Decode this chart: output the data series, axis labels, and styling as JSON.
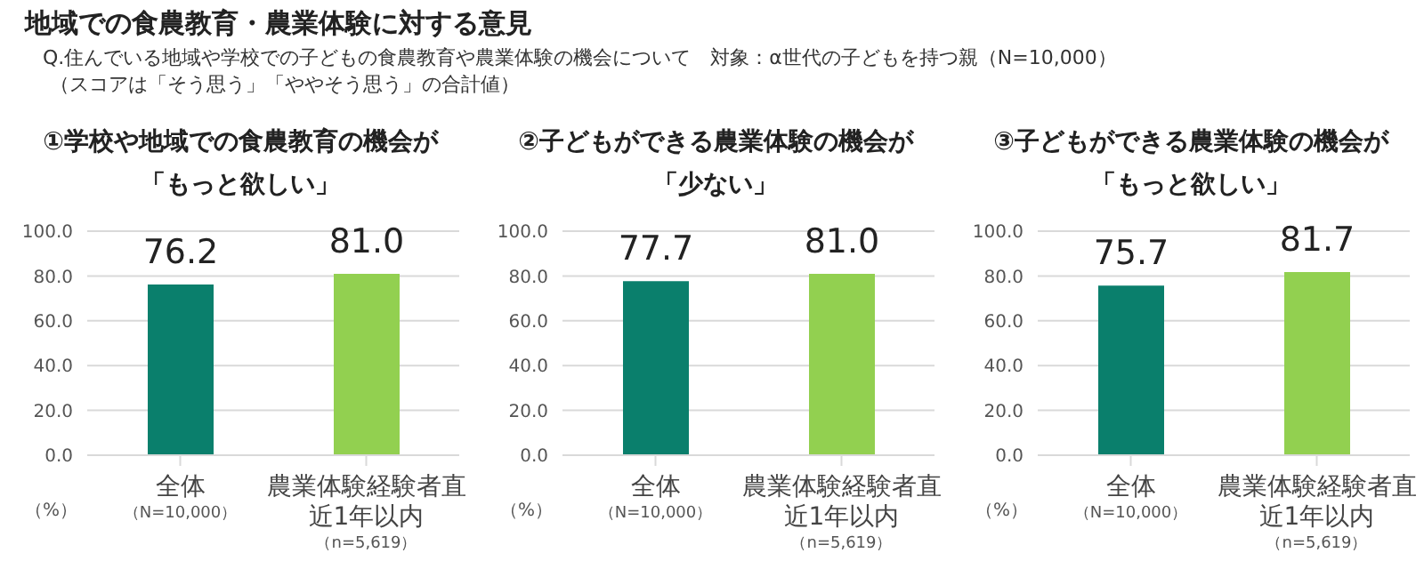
{
  "chart_data": [
    {
      "type": "bar",
      "title": "①学校や地域での食農教育の機会が「もっと欲しい」",
      "annotations": [
        "地域での食農教育・農業体験に対する意見",
        "Q.住んでいる地域や学校での子どもの食農教育や農業体験の機会について　対象：α世代の子どもを持つ親（N=10,000）",
        "（スコアは「そう思う」「ややそう思う」の合計値）"
      ],
      "ylabel": "（%）",
      "categories": [
        "全体（N=10,000）",
        "農業体験経験者直近1年以内（n=5,619）"
      ],
      "values": [
        76.2,
        81.0
      ],
      "colors": [
        "#0a7f6c",
        "#92d050"
      ],
      "value_labels": [
        "76.2",
        "81.0"
      ],
      "ylim": [
        0,
        100
      ],
      "yticks": [
        {
          "value": 0,
          "label": "0.0"
        },
        {
          "value": 20,
          "label": "20.0"
        },
        {
          "value": 40,
          "label": "40.0"
        },
        {
          "value": 60,
          "label": "60.0"
        },
        {
          "value": 80,
          "label": "80.0"
        },
        {
          "value": 100,
          "label": "100.0"
        }
      ],
      "grid": "y"
    },
    {
      "type": "bar",
      "title": "②子どもができる農業体験の機会が「少ない」",
      "ylabel": "（%）",
      "categories": [
        "全体（N=10,000）",
        "農業体験経験者直近1年以内（n=5,619）"
      ],
      "values": [
        77.7,
        81.0
      ],
      "colors": [
        "#0a7f6c",
        "#92d050"
      ],
      "value_labels": [
        "77.7",
        "81.0"
      ],
      "ylim": [
        0,
        100
      ],
      "yticks": [
        {
          "value": 0,
          "label": "0.0"
        },
        {
          "value": 20,
          "label": "20.0"
        },
        {
          "value": 40,
          "label": "40.0"
        },
        {
          "value": 60,
          "label": "60.0"
        },
        {
          "value": 80,
          "label": "80.0"
        },
        {
          "value": 100,
          "label": "100.0"
        }
      ],
      "grid": "y"
    },
    {
      "type": "bar",
      "title": "③子どもができる農業体験の機会が「もっと欲しい」",
      "ylabel": "（%）",
      "categories": [
        "全体（N=10,000）",
        "農業体験経験者直近1年以内（n=5,619）"
      ],
      "values": [
        75.7,
        81.7
      ],
      "colors": [
        "#0a7f6c",
        "#92d050"
      ],
      "value_labels": [
        "75.7",
        "81.7"
      ],
      "ylim": [
        0,
        100
      ],
      "yticks": [
        {
          "value": 0,
          "label": "0.0"
        },
        {
          "value": 20,
          "label": "20.0"
        },
        {
          "value": 40,
          "label": "40.0"
        },
        {
          "value": 60,
          "label": "60.0"
        },
        {
          "value": 80,
          "label": "80.0"
        },
        {
          "value": 100,
          "label": "100.0"
        }
      ],
      "grid": "y"
    }
  ]
}
